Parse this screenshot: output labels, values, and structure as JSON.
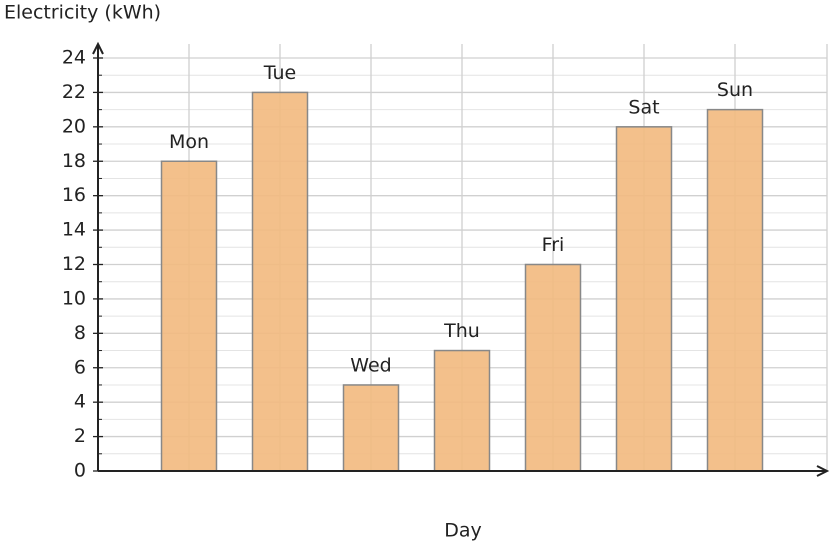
{
  "chart_data": {
    "type": "bar",
    "y_label": "Electricity (kWh)",
    "x_label": "Day",
    "categories": [
      "Mon",
      "Tue",
      "Wed",
      "Thu",
      "Fri",
      "Sat",
      "Sun"
    ],
    "values": [
      18,
      22,
      5,
      7,
      12,
      20,
      21
    ],
    "color": "#f2b97e",
    "ylim": [
      0,
      24
    ],
    "yticks": [
      0,
      2,
      4,
      6,
      8,
      10,
      12,
      14,
      16,
      18,
      20,
      22,
      24
    ],
    "minor_yticks": [
      1,
      3,
      5,
      7,
      9,
      11,
      13,
      15,
      17,
      19,
      21,
      23
    ],
    "grid": true
  }
}
